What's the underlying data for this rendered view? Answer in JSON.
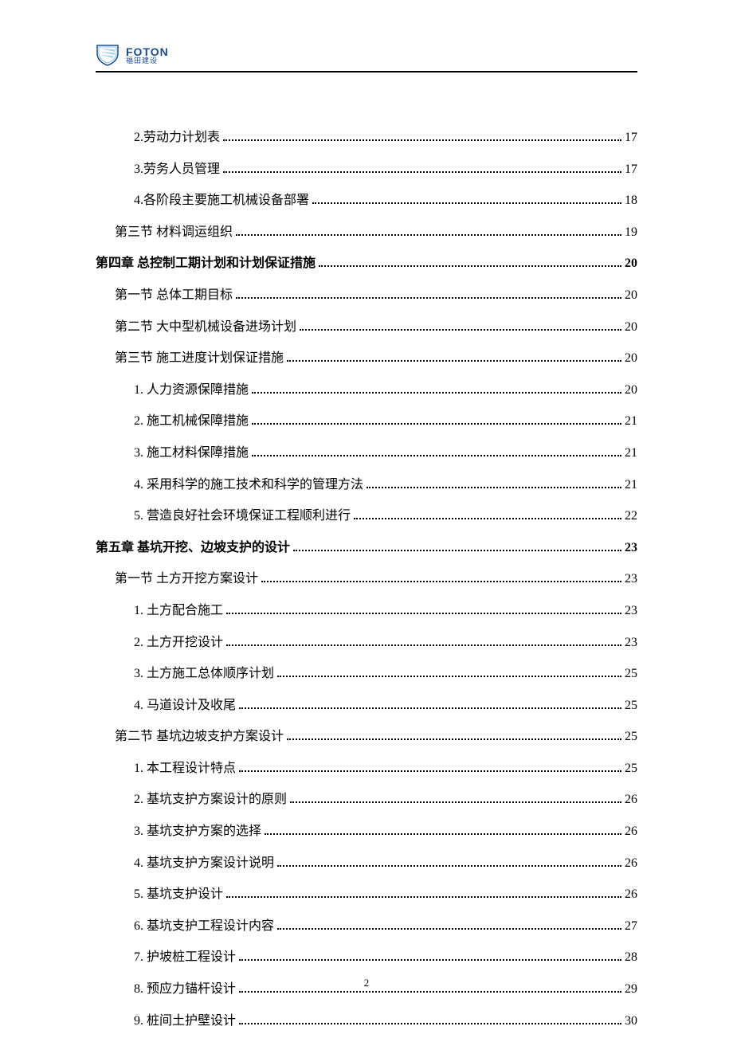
{
  "header": {
    "brand": "FOTON",
    "brand_sub": "福田建设",
    "logo_colors": {
      "outline": "#1a4b8c",
      "fill": "#ffffff",
      "stripe": "#6bb5e8"
    },
    "underline_color": "#000000"
  },
  "page_number": "2",
  "typography": {
    "body_fontsize": 16,
    "bold_fontsize": 16,
    "page_num_fontsize": 13,
    "text_color": "#000000",
    "font_family": "SimSun"
  },
  "toc": [
    {
      "level": 2,
      "title": "2.劳动力计划表",
      "page": "17"
    },
    {
      "level": 2,
      "title": "3.劳务人员管理",
      "page": "17"
    },
    {
      "level": 2,
      "title": "4.各阶段主要施工机械设备部署",
      "page": "18"
    },
    {
      "level": 1,
      "title": "第三节  材料调运组织",
      "page": "19"
    },
    {
      "level": 0,
      "title": "第四章   总控制工期计划和计划保证措施",
      "page": "20"
    },
    {
      "level": 1,
      "title": "第一节  总体工期目标",
      "page": "20"
    },
    {
      "level": 1,
      "title": "第二节 大中型机械设备进场计划",
      "page": "20"
    },
    {
      "level": 1,
      "title": "第三节  施工进度计划保证措施",
      "page": "20"
    },
    {
      "level": 2,
      "title": "1.  人力资源保障措施",
      "page": "20"
    },
    {
      "level": 2,
      "title": "2.  施工机械保障措施",
      "page": "21"
    },
    {
      "level": 2,
      "title": "3.  施工材料保障措施",
      "page": "21"
    },
    {
      "level": 2,
      "title": "4.  采用科学的施工技术和科学的管理方法",
      "page": "21"
    },
    {
      "level": 2,
      "title": "5. 营造良好社会环境保证工程顺利进行",
      "page": "22"
    },
    {
      "level": 0,
      "title": "第五章   基坑开挖、边坡支护的设计",
      "page": "23"
    },
    {
      "level": 1,
      "title": "第一节 土方开挖方案设计",
      "page": "23"
    },
    {
      "level": 2,
      "title": "1. 土方配合施工",
      "page": "23"
    },
    {
      "level": 2,
      "title": "2. 土方开挖设计",
      "page": "23"
    },
    {
      "level": 2,
      "title": "3. 土方施工总体顺序计划",
      "page": "25"
    },
    {
      "level": 2,
      "title": "4. 马道设计及收尾",
      "page": "25"
    },
    {
      "level": 1,
      "title": "第二节  基坑边坡支护方案设计",
      "page": "25"
    },
    {
      "level": 2,
      "title": "1. 本工程设计特点",
      "page": "25"
    },
    {
      "level": 2,
      "title": "2. 基坑支护方案设计的原则",
      "page": "26"
    },
    {
      "level": 2,
      "title": "3. 基坑支护方案的选择",
      "page": "26"
    },
    {
      "level": 2,
      "title": "4. 基坑支护方案设计说明",
      "page": "26"
    },
    {
      "level": 2,
      "title": "5. 基坑支护设计",
      "page": "26"
    },
    {
      "level": 2,
      "title": "6. 基坑支护工程设计内容",
      "page": "27"
    },
    {
      "level": 2,
      "title": "7. 护坡桩工程设计",
      "page": "28"
    },
    {
      "level": 2,
      "title": "8. 预应力锚杆设计",
      "page": "29"
    },
    {
      "level": 2,
      "title": "9. 桩间土护壁设计",
      "page": "30"
    }
  ]
}
